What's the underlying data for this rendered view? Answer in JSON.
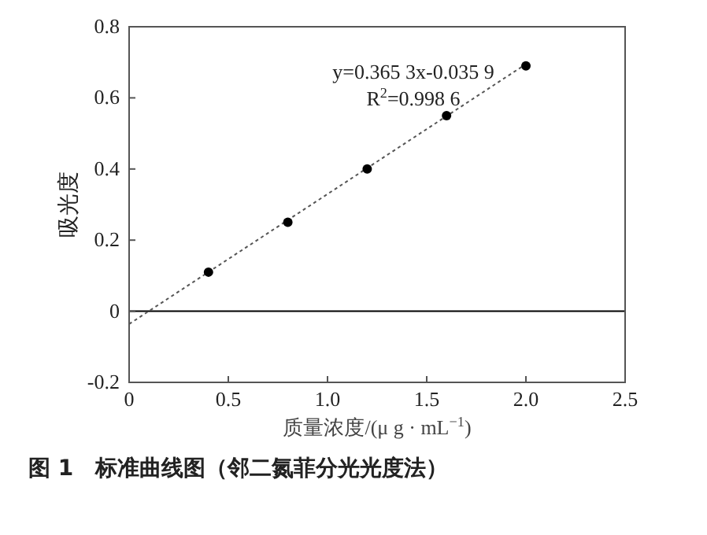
{
  "chart_data": {
    "type": "scatter",
    "xlabel": "质量浓度/(μ g · mL$^{−1}$)",
    "ylabel": "吸光度",
    "annotations": [
      "y=0.365 3x-0.035 9",
      "R$^{2}$=0.998 6",
      "图 1　标准曲线图（邻二氮菲分光光度法）"
    ],
    "series": [
      {
        "x": [
          0.4,
          0.8,
          1.2,
          1.6,
          2.0
        ],
        "values": [
          0.11,
          0.25,
          0.4,
          0.55,
          0.69
        ],
        "color": "#000000",
        "marker": "circle"
      },
      {
        "type": "line",
        "x": [
          0,
          2.0
        ],
        "values": [
          -0.036,
          0.695
        ],
        "color": "#555555",
        "line_style": "dotted",
        "marker": "none"
      }
    ],
    "ref_lines": [
      {
        "axis": "y",
        "value": 0,
        "color": "#000000",
        "line_style": "solid"
      }
    ],
    "xlim": [
      0,
      2.5
    ],
    "xticks": [
      0,
      0.5,
      {
        "value": 1.0,
        "label": "1.0"
      },
      1.5,
      {
        "value": 2.0,
        "label": "2.0"
      },
      2.5
    ],
    "ylim": [
      -0.2,
      0.8
    ],
    "yticks": [
      -0.2,
      0,
      0.2,
      0.4,
      0.6,
      0.8
    ],
    "grid": false
  }
}
